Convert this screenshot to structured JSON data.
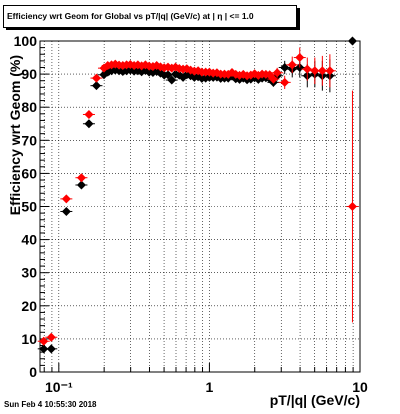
{
  "title": "Efficiency wrt Geom for Global vs pT/|q| (GeV/c) at | η | <= 1.0",
  "datestamp": "Sun Feb  4 10:55:30 2018",
  "colors": {
    "black_series": "#000000",
    "red_series": "#ff0000",
    "grid": "#000000"
  },
  "chart_data": {
    "type": "scatter",
    "title": "Efficiency wrt Geom for Global vs pT/|q| (GeV/c) at | η | <= 1.0",
    "xlabel": "pT/|q| (GeV/c)",
    "ylabel": "Efficiency wrt Geom (%)",
    "xscale": "log",
    "xlim": [
      0.075,
      10.0
    ],
    "ylim": [
      0,
      100
    ],
    "xticks": [
      {
        "value": 0.1,
        "label": "10⁻¹"
      },
      {
        "value": 1,
        "label": "1"
      },
      {
        "value": 10,
        "label": "10"
      }
    ],
    "yticks": [
      0,
      10,
      20,
      30,
      40,
      50,
      60,
      70,
      80,
      90,
      100
    ],
    "grid": true,
    "series": [
      {
        "color": "#000000",
        "x": [
          0.0794,
          0.0891,
          0.1122,
          0.1413,
          0.1585,
          0.1778,
          0.1995,
          0.2113,
          0.2239,
          0.2371,
          0.2512,
          0.2661,
          0.2818,
          0.2985,
          0.3162,
          0.335,
          0.3548,
          0.3758,
          0.3981,
          0.4217,
          0.4467,
          0.4732,
          0.5012,
          0.5309,
          0.5623,
          0.5957,
          0.631,
          0.6683,
          0.7079,
          0.7499,
          0.7943,
          0.8414,
          0.8913,
          0.9441,
          1.0,
          1.0593,
          1.122,
          1.1885,
          1.2589,
          1.3335,
          1.4125,
          1.4962,
          1.5849,
          1.6788,
          1.7783,
          1.8836,
          1.9953,
          2.1135,
          2.2387,
          2.3714,
          2.5119,
          2.6607,
          2.8184,
          3.1623,
          3.5481,
          3.9811,
          4.4668,
          5.0119,
          5.6234,
          6.3096,
          8.9125
        ],
        "y": [
          7.0,
          7.0,
          48.5,
          56.5,
          75.0,
          86.5,
          89.8,
          90.6,
          91.0,
          91.2,
          91.0,
          90.8,
          91.0,
          91.2,
          90.9,
          91.0,
          90.7,
          91.1,
          90.6,
          90.5,
          90.8,
          90.3,
          89.7,
          89.8,
          88.2,
          90.0,
          89.7,
          89.0,
          89.8,
          89.5,
          89.0,
          89.2,
          88.7,
          88.8,
          89.0,
          89.0,
          89.1,
          88.7,
          88.8,
          88.8,
          89.4,
          88.6,
          88.4,
          88.8,
          88.3,
          88.5,
          88.9,
          88.4,
          88.8,
          88.9,
          88.6,
          87.5,
          89.5,
          92.0,
          91.5,
          92.0,
          89.5,
          90.0,
          89.5,
          89.5,
          100.0
        ],
        "yerr": [
          1.2,
          1.2,
          1.0,
          1.0,
          0.8,
          0.8,
          0.5,
          0.5,
          0.5,
          0.5,
          0.5,
          0.5,
          0.5,
          0.5,
          0.5,
          0.5,
          0.5,
          0.5,
          0.5,
          0.5,
          0.5,
          0.5,
          0.6,
          0.6,
          0.6,
          0.6,
          0.6,
          0.6,
          0.6,
          0.6,
          0.6,
          0.6,
          0.6,
          0.6,
          0.6,
          0.6,
          0.7,
          0.7,
          0.7,
          0.7,
          0.7,
          0.8,
          0.8,
          0.8,
          0.8,
          0.9,
          0.9,
          1.0,
          1.0,
          1.1,
          1.2,
          1.3,
          1.5,
          2.0,
          2.5,
          3.0,
          3.5,
          4.0,
          4.5,
          5.0,
          0.0
        ]
      },
      {
        "color": "#ff0000",
        "x": [
          0.0794,
          0.0891,
          0.1122,
          0.1413,
          0.1585,
          0.1778,
          0.1995,
          0.2113,
          0.2239,
          0.2371,
          0.2512,
          0.2661,
          0.2818,
          0.2985,
          0.3162,
          0.335,
          0.3548,
          0.3758,
          0.3981,
          0.4217,
          0.4467,
          0.4732,
          0.5012,
          0.5309,
          0.5623,
          0.5957,
          0.631,
          0.6683,
          0.7079,
          0.7499,
          0.7943,
          0.8414,
          0.8913,
          0.9441,
          1.0,
          1.0593,
          1.122,
          1.1885,
          1.2589,
          1.3335,
          1.4125,
          1.4962,
          1.5849,
          1.6788,
          1.7783,
          1.8836,
          1.9953,
          2.1135,
          2.2387,
          2.3714,
          2.5119,
          2.6607,
          2.8184,
          3.1623,
          3.5481,
          3.9811,
          4.4668,
          5.0119,
          5.6234,
          6.3096,
          8.9125
        ],
        "y": [
          9.3,
          10.5,
          52.3,
          58.7,
          77.8,
          88.8,
          91.8,
          92.6,
          92.8,
          93.0,
          92.7,
          92.6,
          92.8,
          92.9,
          92.6,
          92.8,
          92.5,
          92.8,
          92.4,
          92.3,
          92.6,
          92.2,
          91.9,
          92.1,
          91.8,
          92.1,
          91.7,
          91.5,
          91.6,
          91.2,
          90.9,
          91.0,
          90.6,
          90.6,
          90.6,
          90.3,
          90.4,
          90.0,
          90.0,
          89.9,
          90.5,
          89.9,
          89.6,
          89.9,
          89.5,
          89.7,
          90.1,
          89.6,
          90.0,
          89.9,
          89.8,
          88.5,
          90.4,
          87.5,
          92.8,
          95.0,
          91.5,
          91.0,
          91.0,
          91.0,
          50.0
        ],
        "yerr": [
          1.2,
          1.2,
          1.0,
          1.0,
          0.8,
          0.8,
          0.5,
          0.5,
          0.5,
          0.5,
          0.5,
          0.5,
          0.5,
          0.5,
          0.5,
          0.5,
          0.5,
          0.5,
          0.5,
          0.5,
          0.5,
          0.5,
          0.6,
          0.6,
          0.6,
          0.6,
          0.6,
          0.6,
          0.6,
          0.6,
          0.6,
          0.6,
          0.6,
          0.6,
          0.6,
          0.6,
          0.7,
          0.7,
          0.7,
          0.7,
          0.7,
          0.8,
          0.8,
          0.8,
          0.8,
          0.9,
          0.9,
          1.0,
          1.0,
          1.1,
          1.2,
          1.3,
          1.5,
          2.0,
          2.5,
          3.0,
          3.5,
          4.0,
          4.5,
          5.0,
          35.0
        ]
      }
    ]
  }
}
